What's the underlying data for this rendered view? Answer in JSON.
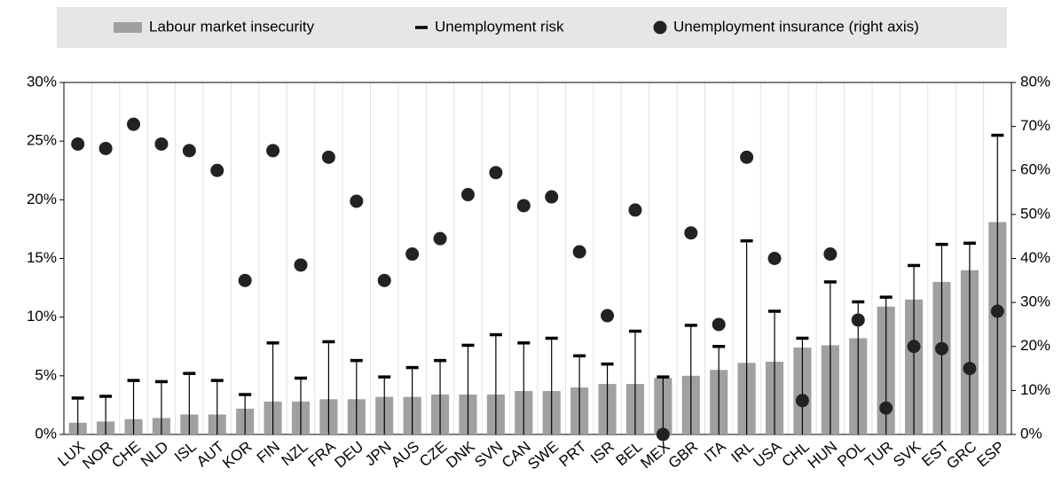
{
  "chart_data": {
    "type": "bar",
    "categories": [
      "LUX",
      "NOR",
      "CHE",
      "NLD",
      "ISL",
      "AUT",
      "KOR",
      "FIN",
      "NZL",
      "FRA",
      "DEU",
      "JPN",
      "AUS",
      "CZE",
      "DNK",
      "SVN",
      "CAN",
      "SWE",
      "PRT",
      "ISR",
      "BEL",
      "MEX",
      "GBR",
      "ITA",
      "IRL",
      "USA",
      "CHL",
      "HUN",
      "POL",
      "TUR",
      "SVK",
      "EST",
      "GRC",
      "ESP"
    ],
    "series": [
      {
        "name": "Labour market insecurity",
        "color": "#a0a0a0",
        "marker": "bar",
        "values": [
          1.0,
          1.1,
          1.3,
          1.4,
          1.7,
          1.7,
          2.2,
          2.8,
          2.8,
          3.0,
          3.0,
          3.2,
          3.2,
          3.4,
          3.4,
          3.4,
          3.7,
          3.7,
          4.0,
          4.3,
          4.3,
          4.8,
          5.0,
          5.5,
          6.1,
          6.2,
          7.4,
          7.6,
          8.2,
          10.9,
          11.5,
          13.0,
          14.0,
          18.1
        ]
      },
      {
        "name": "Unemployment risk",
        "color": "#000000",
        "marker": "dash",
        "values": [
          3.1,
          3.25,
          4.6,
          4.5,
          5.2,
          4.6,
          3.4,
          7.8,
          4.8,
          7.9,
          6.3,
          4.9,
          5.7,
          6.3,
          7.6,
          8.5,
          7.8,
          8.2,
          6.7,
          6.0,
          8.8,
          4.9,
          9.3,
          7.5,
          16.5,
          10.5,
          8.2,
          13.0,
          11.3,
          11.7,
          14.4,
          16.2,
          16.3,
          25.5
        ]
      },
      {
        "name": "Unemployment insurance (right axis)",
        "color": "#222222",
        "marker": "dot",
        "axis": "y2",
        "values": [
          66,
          65,
          70.5,
          66,
          64.5,
          60,
          35,
          64.5,
          38.5,
          63,
          53,
          35,
          41,
          44.5,
          54.5,
          59.5,
          52,
          54,
          41.5,
          27,
          51,
          0,
          45.8,
          25,
          63,
          40,
          7.7,
          41,
          26,
          6,
          20,
          19.5,
          15,
          28
        ]
      }
    ],
    "ylim": [
      0,
      30
    ],
    "yticks": [
      {
        "value": 0,
        "label": "0%"
      },
      {
        "value": 5,
        "label": "5%"
      },
      {
        "value": 10,
        "label": "10%"
      },
      {
        "value": 15,
        "label": "15%"
      },
      {
        "value": 20,
        "label": "20%"
      },
      {
        "value": 25,
        "label": "25%"
      },
      {
        "value": 30,
        "label": "30%"
      }
    ],
    "y2lim": [
      0,
      80
    ],
    "y2ticks": [
      {
        "value": 0,
        "label": "0%"
      },
      {
        "value": 10,
        "label": "10%"
      },
      {
        "value": 20,
        "label": "20%"
      },
      {
        "value": 30,
        "label": "30%"
      },
      {
        "value": 40,
        "label": "40%"
      },
      {
        "value": 50,
        "label": "50%"
      },
      {
        "value": 60,
        "label": "60%"
      },
      {
        "value": 70,
        "label": "70%"
      },
      {
        "value": 80,
        "label": "80%"
      }
    ]
  }
}
